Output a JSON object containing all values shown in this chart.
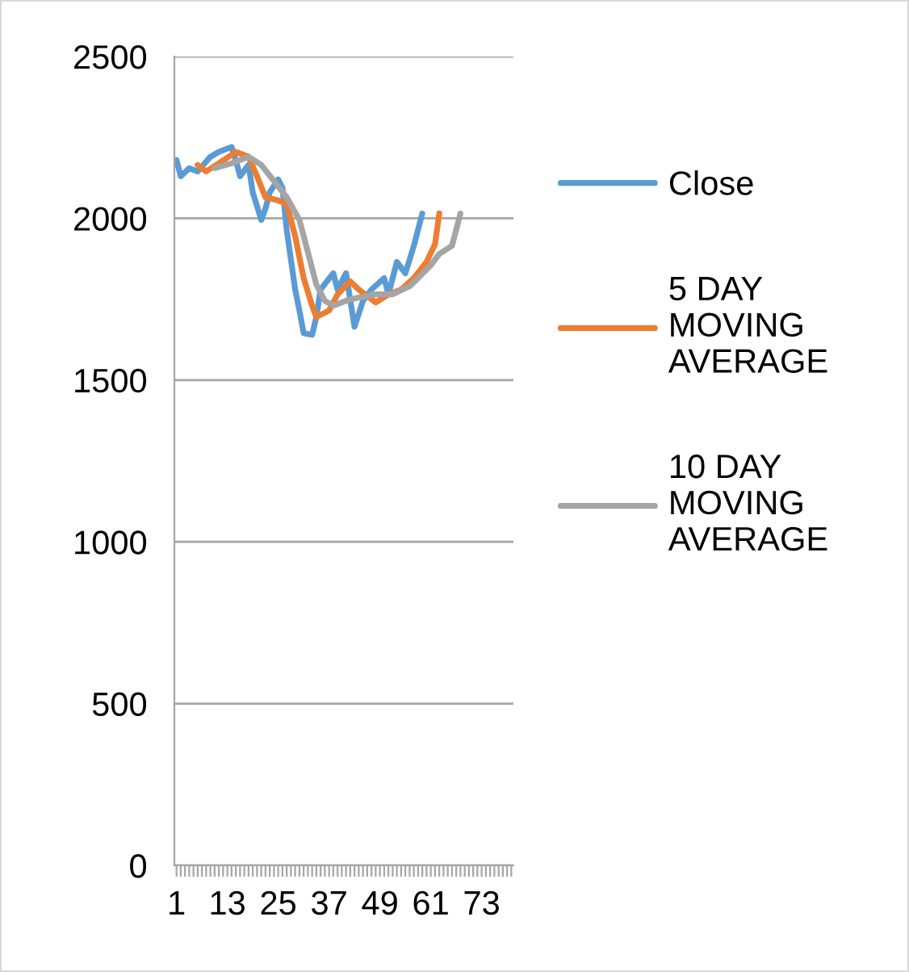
{
  "chart_data": {
    "type": "line",
    "xlim": [
      0.5,
      80.5
    ],
    "ylim": [
      0,
      2500
    ],
    "yticks": [
      0,
      500,
      1000,
      1500,
      2000,
      2500
    ],
    "grid": "y",
    "legend": "right",
    "line_style": "solid",
    "marker": "none",
    "series": [
      {
        "name": "Close",
        "color": "#5b9bd5",
        "x": [
          1,
          2,
          4,
          6,
          9,
          11,
          14,
          15,
          16,
          18,
          19,
          21,
          22,
          23,
          25,
          26,
          27,
          29,
          30,
          31,
          33,
          34,
          35,
          38,
          39,
          41,
          43,
          45,
          47,
          50,
          51,
          53,
          55,
          57,
          59
        ],
        "values": [
          2180,
          2130,
          2155,
          2145,
          2190,
          2205,
          2220,
          2180,
          2130,
          2165,
          2080,
          1995,
          2030,
          2080,
          2120,
          2095,
          1965,
          1780,
          1715,
          1645,
          1640,
          1695,
          1780,
          1830,
          1780,
          1830,
          1665,
          1745,
          1780,
          1815,
          1765,
          1865,
          1830,
          1915,
          2015
        ]
      },
      {
        "name": "5 DAY\nMOVING\nAVERAGE",
        "color": "#ed7d31",
        "x": [
          6,
          8,
          11,
          15,
          18,
          20,
          22,
          25,
          27,
          29,
          31,
          33,
          34,
          37,
          39,
          42,
          44,
          48,
          51,
          54,
          57,
          60,
          62,
          63
        ],
        "values": [
          2165,
          2145,
          2170,
          2205,
          2190,
          2130,
          2065,
          2055,
          2045,
          1945,
          1815,
          1730,
          1695,
          1715,
          1765,
          1805,
          1780,
          1740,
          1765,
          1780,
          1815,
          1865,
          1920,
          2015
        ]
      },
      {
        "name": "10 DAY\nMOVING\nAVERAGE",
        "color": "#a5a5a5",
        "x": [
          10,
          14,
          18,
          21,
          24,
          27,
          30,
          32,
          34,
          36,
          38,
          41,
          44,
          48,
          52,
          56,
          58,
          61,
          63,
          66,
          68
        ],
        "values": [
          2155,
          2170,
          2190,
          2165,
          2115,
          2065,
          1995,
          1895,
          1795,
          1745,
          1730,
          1745,
          1755,
          1765,
          1765,
          1790,
          1815,
          1855,
          1890,
          1915,
          2015
        ]
      }
    ],
    "xticks": [
      {
        "value": 1,
        "label": "1"
      },
      {
        "value": 2,
        "label": null
      },
      {
        "value": 3,
        "label": null
      },
      {
        "value": 4,
        "label": null
      },
      {
        "value": 5,
        "label": null
      },
      {
        "value": 6,
        "label": null
      },
      {
        "value": 7,
        "label": null
      },
      {
        "value": 8,
        "label": null
      },
      {
        "value": 9,
        "label": null
      },
      {
        "value": 10,
        "label": null
      },
      {
        "value": 11,
        "label": null
      },
      {
        "value": 12,
        "label": null
      },
      {
        "value": 13,
        "label": "13"
      },
      {
        "value": 14,
        "label": null
      },
      {
        "value": 15,
        "label": null
      },
      {
        "value": 16,
        "label": null
      },
      {
        "value": 17,
        "label": null
      },
      {
        "value": 18,
        "label": null
      },
      {
        "value": 19,
        "label": null
      },
      {
        "value": 20,
        "label": null
      },
      {
        "value": 21,
        "label": null
      },
      {
        "value": 22,
        "label": null
      },
      {
        "value": 23,
        "label": null
      },
      {
        "value": 24,
        "label": null
      },
      {
        "value": 25,
        "label": "25"
      },
      {
        "value": 26,
        "label": null
      },
      {
        "value": 27,
        "label": null
      },
      {
        "value": 28,
        "label": null
      },
      {
        "value": 29,
        "label": null
      },
      {
        "value": 30,
        "label": null
      },
      {
        "value": 31,
        "label": null
      },
      {
        "value": 32,
        "label": null
      },
      {
        "value": 33,
        "label": null
      },
      {
        "value": 34,
        "label": null
      },
      {
        "value": 35,
        "label": null
      },
      {
        "value": 36,
        "label": null
      },
      {
        "value": 37,
        "label": "37"
      },
      {
        "value": 38,
        "label": null
      },
      {
        "value": 39,
        "label": null
      },
      {
        "value": 40,
        "label": null
      },
      {
        "value": 41,
        "label": null
      },
      {
        "value": 42,
        "label": null
      },
      {
        "value": 43,
        "label": null
      },
      {
        "value": 44,
        "label": null
      },
      {
        "value": 45,
        "label": null
      },
      {
        "value": 46,
        "label": null
      },
      {
        "value": 47,
        "label": null
      },
      {
        "value": 48,
        "label": null
      },
      {
        "value": 49,
        "label": "49"
      },
      {
        "value": 50,
        "label": null
      },
      {
        "value": 51,
        "label": null
      },
      {
        "value": 52,
        "label": null
      },
      {
        "value": 53,
        "label": null
      },
      {
        "value": 54,
        "label": null
      },
      {
        "value": 55,
        "label": null
      },
      {
        "value": 56,
        "label": null
      },
      {
        "value": 57,
        "label": null
      },
      {
        "value": 58,
        "label": null
      },
      {
        "value": 59,
        "label": null
      },
      {
        "value": 60,
        "label": null
      },
      {
        "value": 61,
        "label": "61"
      },
      {
        "value": 62,
        "label": null
      },
      {
        "value": 63,
        "label": null
      },
      {
        "value": 64,
        "label": null
      },
      {
        "value": 65,
        "label": null
      },
      {
        "value": 66,
        "label": null
      },
      {
        "value": 67,
        "label": null
      },
      {
        "value": 68,
        "label": null
      },
      {
        "value": 69,
        "label": null
      },
      {
        "value": 70,
        "label": null
      },
      {
        "value": 71,
        "label": null
      },
      {
        "value": 72,
        "label": null
      },
      {
        "value": 73,
        "label": "73"
      },
      {
        "value": 74,
        "label": null
      },
      {
        "value": 75,
        "label": null
      },
      {
        "value": 76,
        "label": null
      },
      {
        "value": 77,
        "label": null
      },
      {
        "value": 78,
        "label": null
      },
      {
        "value": 79,
        "label": null
      },
      {
        "value": 80,
        "label": null
      }
    ]
  }
}
